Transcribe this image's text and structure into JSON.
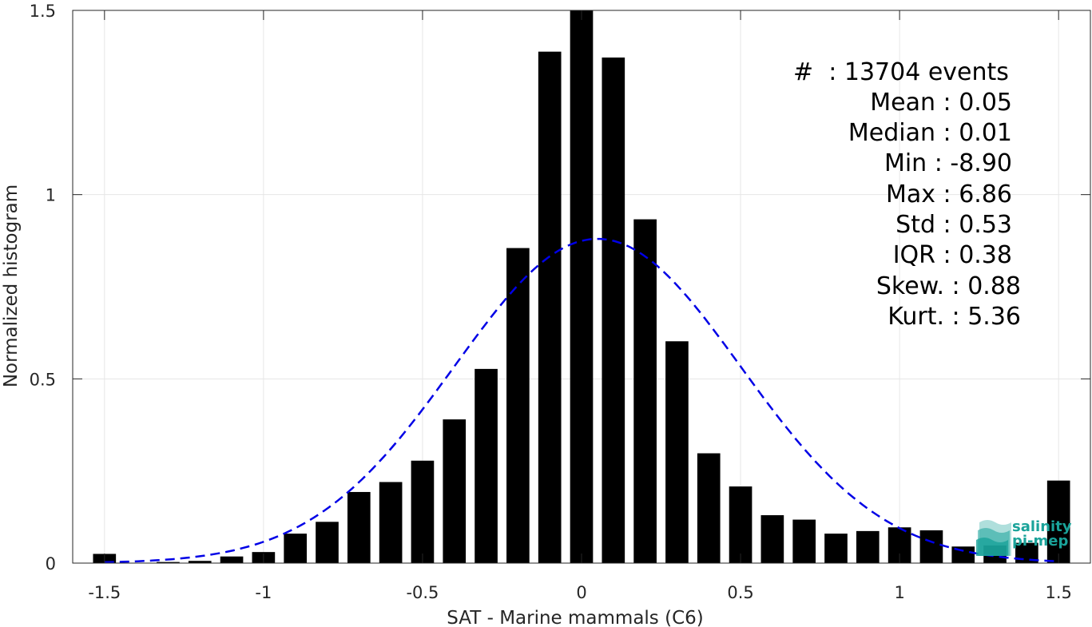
{
  "chart_data": {
    "type": "bar",
    "xlabel": "SAT - Marine mammals (C6)",
    "ylabel": "Normalized histogram",
    "xlim": [
      -1.6,
      1.6
    ],
    "ylim": [
      0,
      1.5
    ],
    "xticks": [
      -1.5,
      -1,
      -0.5,
      0,
      0.5,
      1,
      1.5
    ],
    "xtick_labels": [
      "-1.5",
      "-1",
      "-0.5",
      "0",
      "0.5",
      "1",
      "1.5"
    ],
    "yticks": [
      0,
      0.5,
      1,
      1.5
    ],
    "ytick_labels": [
      "0",
      "0.5",
      "1",
      "1.5"
    ],
    "grid": true,
    "bar_color": "#000000",
    "fit_color": "#0000e6",
    "bars": {
      "x": [
        -1.5,
        -1.4,
        -1.3,
        -1.2,
        -1.1,
        -1.0,
        -0.9,
        -0.8,
        -0.7,
        -0.6,
        -0.5,
        -0.4,
        -0.3,
        -0.2,
        -0.1,
        0.0,
        0.1,
        0.2,
        0.3,
        0.4,
        0.5,
        0.6,
        0.7,
        0.8,
        0.9,
        1.0,
        1.1,
        1.2,
        1.3,
        1.4,
        1.5
      ],
      "values": [
        0.025,
        0.0,
        0.003,
        0.006,
        0.018,
        0.03,
        0.08,
        0.112,
        0.193,
        0.22,
        0.278,
        0.39,
        0.527,
        0.855,
        1.388,
        1.5,
        1.372,
        0.933,
        0.602,
        0.298,
        0.208,
        0.13,
        0.118,
        0.08,
        0.087,
        0.097,
        0.089,
        0.045,
        0.048,
        0.055,
        0.224
      ]
    },
    "fit_curve": {
      "style": "dashed",
      "mean": 0.05,
      "std": 0.45,
      "peak": 0.88,
      "x_range": [
        -1.5,
        1.5
      ]
    }
  },
  "stats": {
    "count": "#  : 13704 events",
    "mean": "Mean : 0.05",
    "median": "Median : 0.01",
    "min": "Min : -8.90",
    "max": "Max : 6.86",
    "std": "Std : 0.53",
    "iqr": "IQR : 0.38",
    "skew": "Skew. : 0.88",
    "kurt": "Kurt. : 5.36"
  },
  "logo": {
    "line1": "salinity",
    "line2": "pi-mep",
    "color": "#1aa39a"
  }
}
